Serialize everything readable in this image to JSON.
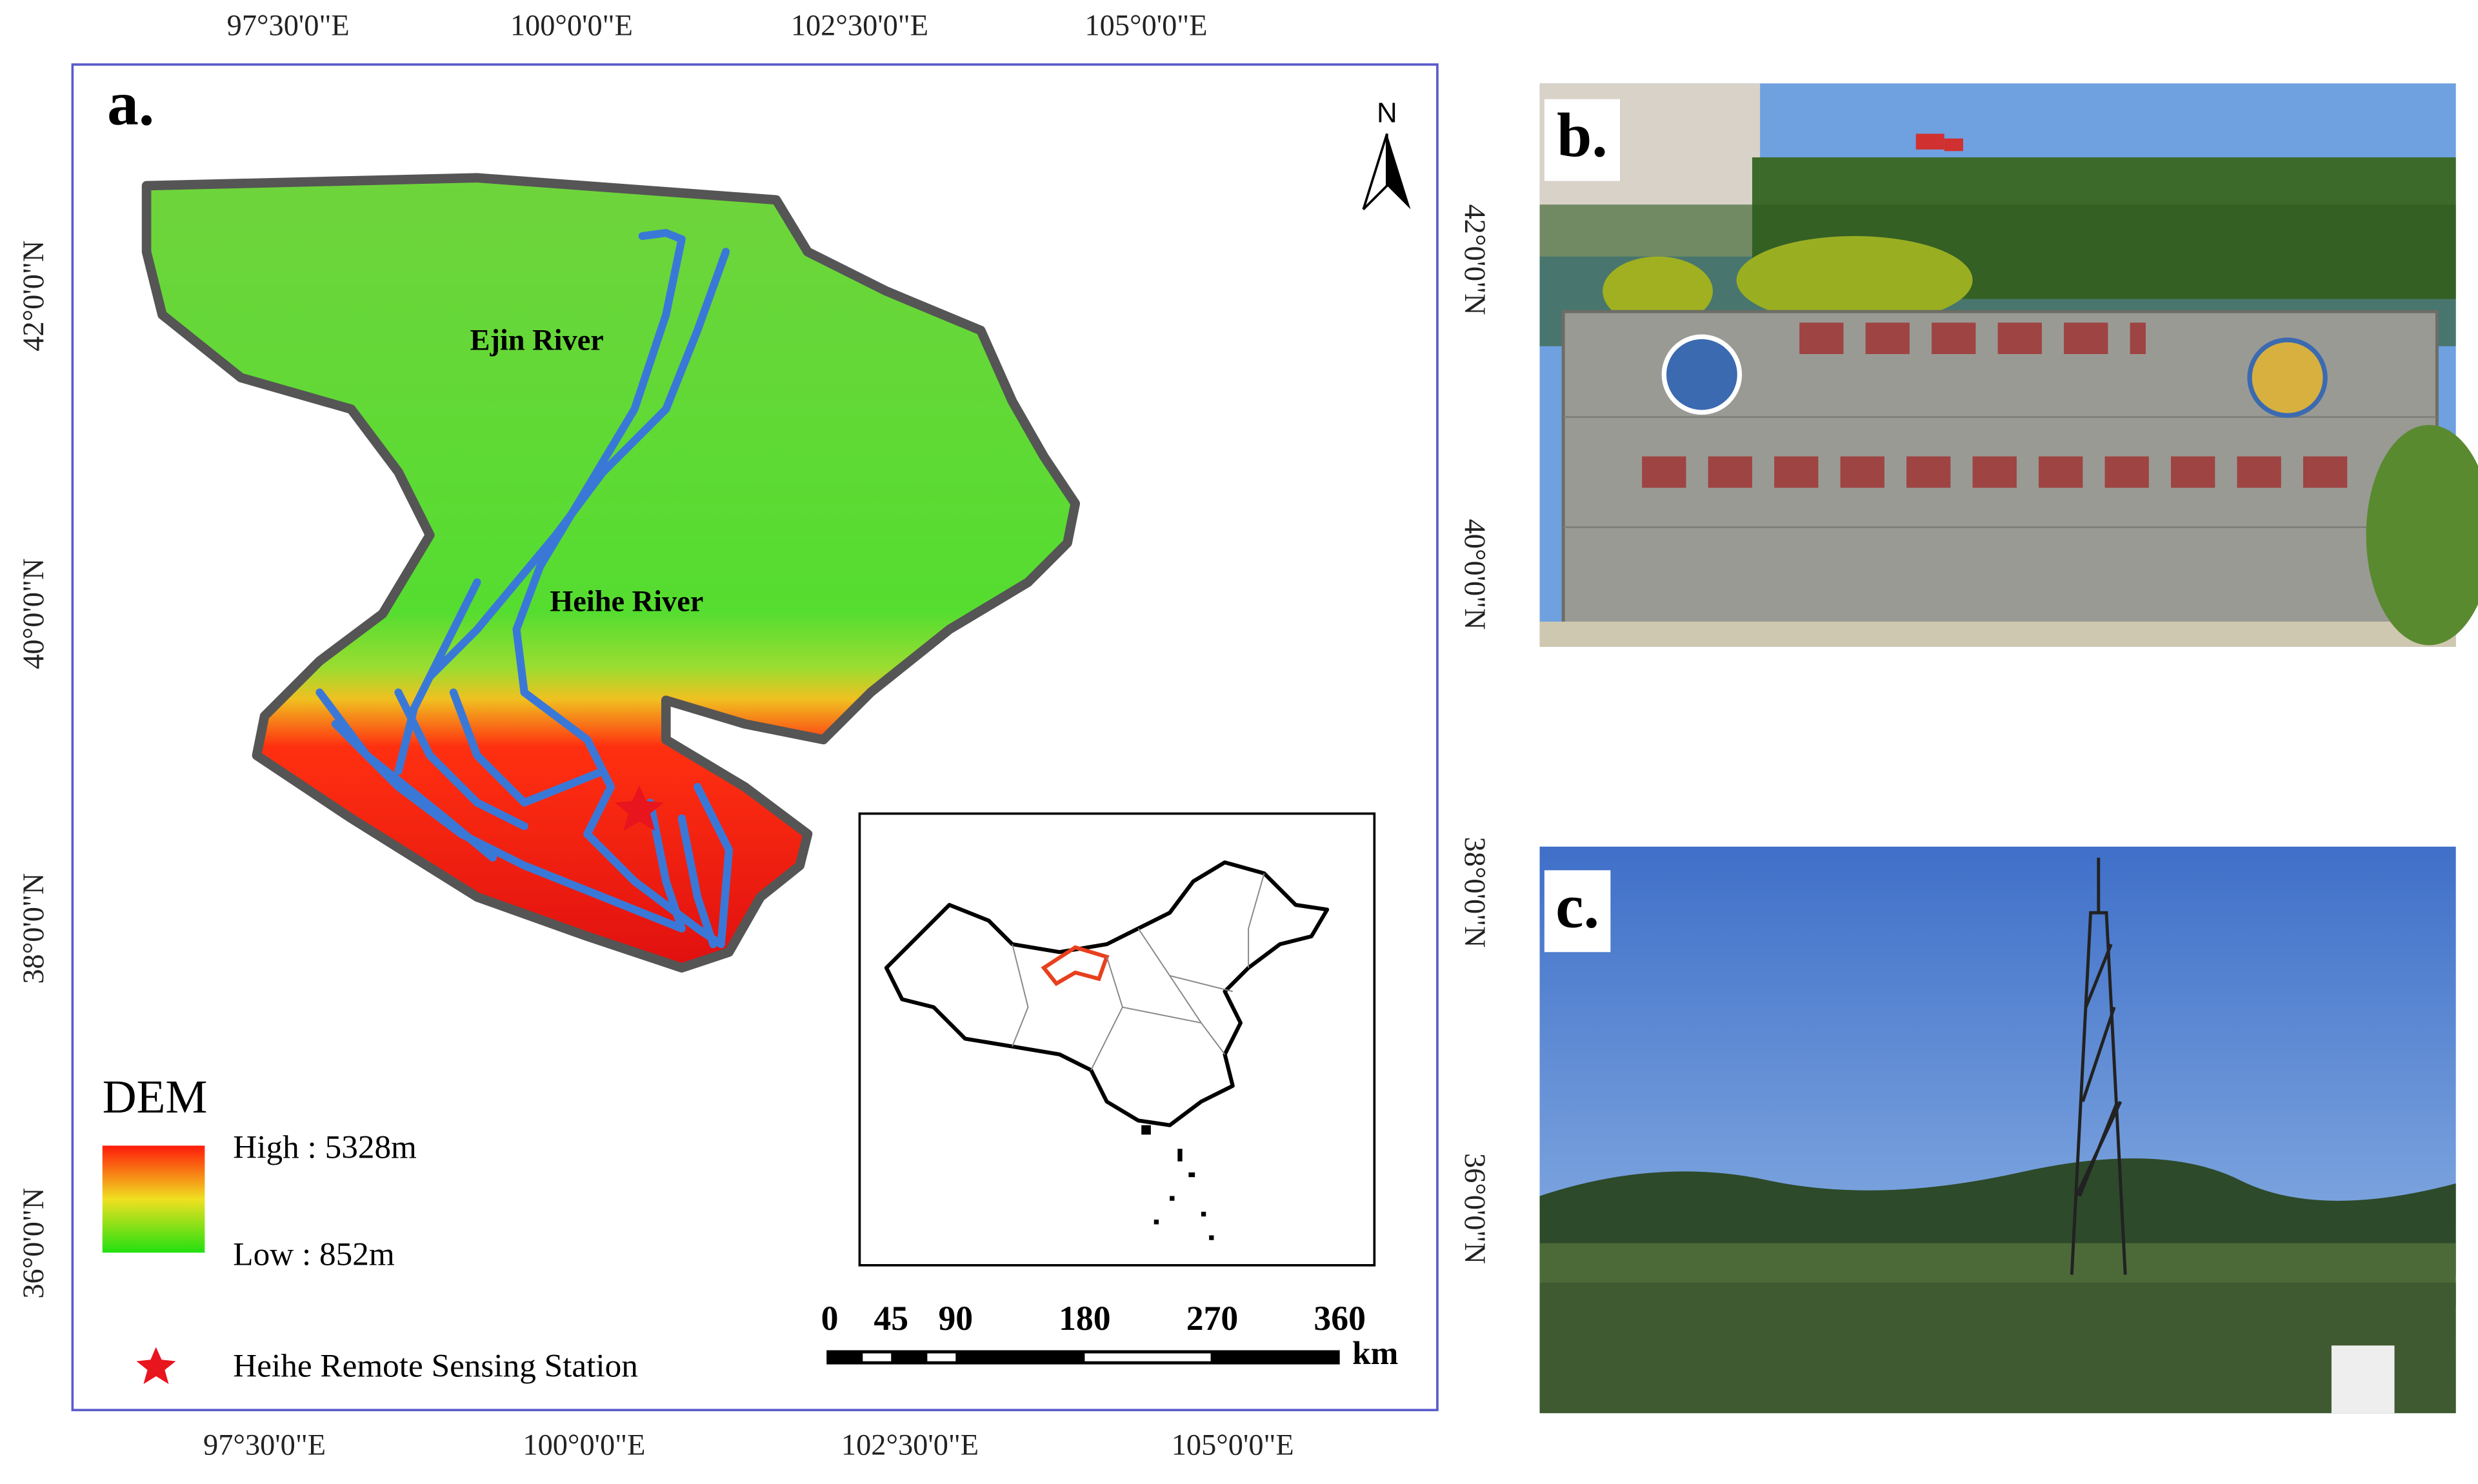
{
  "panel_a": {
    "label": "a.",
    "top_lon_labels": [
      "97°30'0\"E",
      "100°0'0\"E",
      "102°30'0\"E",
      "105°0'0\"E"
    ],
    "bottom_lon_labels": [
      "97°30'0\"E",
      "100°0'0\"E",
      "102°30'0\"E",
      "105°0'0\"E"
    ],
    "left_lat_labels": [
      "42°0'0\"N",
      "40°0'0\"N",
      "38°0'0\"N",
      "36°0'0\"N"
    ],
    "right_lat_labels": [
      "42°0'0\"N",
      "40°0'0\"N",
      "38°0'0\"N",
      "36°0'0\"N"
    ],
    "north": "N",
    "rivers": [
      "Ejin River",
      "Heihe River"
    ],
    "legend": {
      "title": "DEM",
      "high": "High : 5328m",
      "low": "Low : 852m",
      "station": "Heihe Remote Sensing Station"
    },
    "scale_bar": {
      "labels": [
        0,
        45,
        90,
        180,
        270,
        360
      ],
      "unit": "km"
    }
  },
  "panel_b": {
    "label": "b."
  },
  "panel_c": {
    "label": "c."
  }
}
